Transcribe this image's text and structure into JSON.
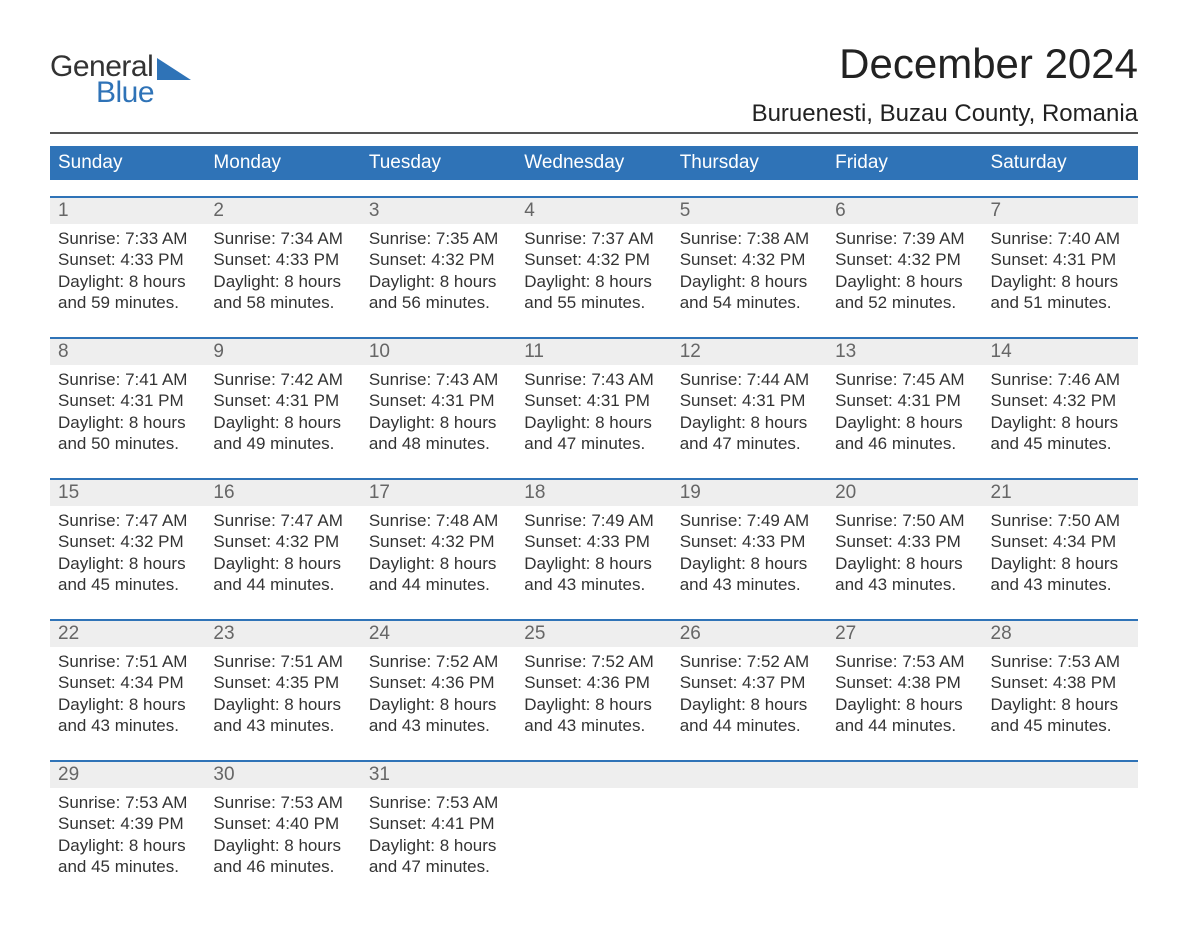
{
  "brand": {
    "word1": "General",
    "word2": "Blue"
  },
  "title": "December 2024",
  "location": "Buruenesti, Buzau County, Romania",
  "colors": {
    "header_bg": "#2f73b7",
    "daynum_bg": "#eeeeee",
    "week_border": "#2f73b7",
    "text": "#333333",
    "daynum_text": "#666666"
  },
  "day_headers": [
    "Sunday",
    "Monday",
    "Tuesday",
    "Wednesday",
    "Thursday",
    "Friday",
    "Saturday"
  ],
  "weeks": [
    {
      "days": [
        {
          "num": "1",
          "sunrise": "Sunrise: 7:33 AM",
          "sunset": "Sunset: 4:33 PM",
          "dl1": "Daylight: 8 hours",
          "dl2": "and 59 minutes."
        },
        {
          "num": "2",
          "sunrise": "Sunrise: 7:34 AM",
          "sunset": "Sunset: 4:33 PM",
          "dl1": "Daylight: 8 hours",
          "dl2": "and 58 minutes."
        },
        {
          "num": "3",
          "sunrise": "Sunrise: 7:35 AM",
          "sunset": "Sunset: 4:32 PM",
          "dl1": "Daylight: 8 hours",
          "dl2": "and 56 minutes."
        },
        {
          "num": "4",
          "sunrise": "Sunrise: 7:37 AM",
          "sunset": "Sunset: 4:32 PM",
          "dl1": "Daylight: 8 hours",
          "dl2": "and 55 minutes."
        },
        {
          "num": "5",
          "sunrise": "Sunrise: 7:38 AM",
          "sunset": "Sunset: 4:32 PM",
          "dl1": "Daylight: 8 hours",
          "dl2": "and 54 minutes."
        },
        {
          "num": "6",
          "sunrise": "Sunrise: 7:39 AM",
          "sunset": "Sunset: 4:32 PM",
          "dl1": "Daylight: 8 hours",
          "dl2": "and 52 minutes."
        },
        {
          "num": "7",
          "sunrise": "Sunrise: 7:40 AM",
          "sunset": "Sunset: 4:31 PM",
          "dl1": "Daylight: 8 hours",
          "dl2": "and 51 minutes."
        }
      ]
    },
    {
      "days": [
        {
          "num": "8",
          "sunrise": "Sunrise: 7:41 AM",
          "sunset": "Sunset: 4:31 PM",
          "dl1": "Daylight: 8 hours",
          "dl2": "and 50 minutes."
        },
        {
          "num": "9",
          "sunrise": "Sunrise: 7:42 AM",
          "sunset": "Sunset: 4:31 PM",
          "dl1": "Daylight: 8 hours",
          "dl2": "and 49 minutes."
        },
        {
          "num": "10",
          "sunrise": "Sunrise: 7:43 AM",
          "sunset": "Sunset: 4:31 PM",
          "dl1": "Daylight: 8 hours",
          "dl2": "and 48 minutes."
        },
        {
          "num": "11",
          "sunrise": "Sunrise: 7:43 AM",
          "sunset": "Sunset: 4:31 PM",
          "dl1": "Daylight: 8 hours",
          "dl2": "and 47 minutes."
        },
        {
          "num": "12",
          "sunrise": "Sunrise: 7:44 AM",
          "sunset": "Sunset: 4:31 PM",
          "dl1": "Daylight: 8 hours",
          "dl2": "and 47 minutes."
        },
        {
          "num": "13",
          "sunrise": "Sunrise: 7:45 AM",
          "sunset": "Sunset: 4:31 PM",
          "dl1": "Daylight: 8 hours",
          "dl2": "and 46 minutes."
        },
        {
          "num": "14",
          "sunrise": "Sunrise: 7:46 AM",
          "sunset": "Sunset: 4:32 PM",
          "dl1": "Daylight: 8 hours",
          "dl2": "and 45 minutes."
        }
      ]
    },
    {
      "days": [
        {
          "num": "15",
          "sunrise": "Sunrise: 7:47 AM",
          "sunset": "Sunset: 4:32 PM",
          "dl1": "Daylight: 8 hours",
          "dl2": "and 45 minutes."
        },
        {
          "num": "16",
          "sunrise": "Sunrise: 7:47 AM",
          "sunset": "Sunset: 4:32 PM",
          "dl1": "Daylight: 8 hours",
          "dl2": "and 44 minutes."
        },
        {
          "num": "17",
          "sunrise": "Sunrise: 7:48 AM",
          "sunset": "Sunset: 4:32 PM",
          "dl1": "Daylight: 8 hours",
          "dl2": "and 44 minutes."
        },
        {
          "num": "18",
          "sunrise": "Sunrise: 7:49 AM",
          "sunset": "Sunset: 4:33 PM",
          "dl1": "Daylight: 8 hours",
          "dl2": "and 43 minutes."
        },
        {
          "num": "19",
          "sunrise": "Sunrise: 7:49 AM",
          "sunset": "Sunset: 4:33 PM",
          "dl1": "Daylight: 8 hours",
          "dl2": "and 43 minutes."
        },
        {
          "num": "20",
          "sunrise": "Sunrise: 7:50 AM",
          "sunset": "Sunset: 4:33 PM",
          "dl1": "Daylight: 8 hours",
          "dl2": "and 43 minutes."
        },
        {
          "num": "21",
          "sunrise": "Sunrise: 7:50 AM",
          "sunset": "Sunset: 4:34 PM",
          "dl1": "Daylight: 8 hours",
          "dl2": "and 43 minutes."
        }
      ]
    },
    {
      "days": [
        {
          "num": "22",
          "sunrise": "Sunrise: 7:51 AM",
          "sunset": "Sunset: 4:34 PM",
          "dl1": "Daylight: 8 hours",
          "dl2": "and 43 minutes."
        },
        {
          "num": "23",
          "sunrise": "Sunrise: 7:51 AM",
          "sunset": "Sunset: 4:35 PM",
          "dl1": "Daylight: 8 hours",
          "dl2": "and 43 minutes."
        },
        {
          "num": "24",
          "sunrise": "Sunrise: 7:52 AM",
          "sunset": "Sunset: 4:36 PM",
          "dl1": "Daylight: 8 hours",
          "dl2": "and 43 minutes."
        },
        {
          "num": "25",
          "sunrise": "Sunrise: 7:52 AM",
          "sunset": "Sunset: 4:36 PM",
          "dl1": "Daylight: 8 hours",
          "dl2": "and 43 minutes."
        },
        {
          "num": "26",
          "sunrise": "Sunrise: 7:52 AM",
          "sunset": "Sunset: 4:37 PM",
          "dl1": "Daylight: 8 hours",
          "dl2": "and 44 minutes."
        },
        {
          "num": "27",
          "sunrise": "Sunrise: 7:53 AM",
          "sunset": "Sunset: 4:38 PM",
          "dl1": "Daylight: 8 hours",
          "dl2": "and 44 minutes."
        },
        {
          "num": "28",
          "sunrise": "Sunrise: 7:53 AM",
          "sunset": "Sunset: 4:38 PM",
          "dl1": "Daylight: 8 hours",
          "dl2": "and 45 minutes."
        }
      ]
    },
    {
      "days": [
        {
          "num": "29",
          "sunrise": "Sunrise: 7:53 AM",
          "sunset": "Sunset: 4:39 PM",
          "dl1": "Daylight: 8 hours",
          "dl2": "and 45 minutes."
        },
        {
          "num": "30",
          "sunrise": "Sunrise: 7:53 AM",
          "sunset": "Sunset: 4:40 PM",
          "dl1": "Daylight: 8 hours",
          "dl2": "and 46 minutes."
        },
        {
          "num": "31",
          "sunrise": "Sunrise: 7:53 AM",
          "sunset": "Sunset: 4:41 PM",
          "dl1": "Daylight: 8 hours",
          "dl2": "and 47 minutes."
        },
        {
          "empty": true
        },
        {
          "empty": true
        },
        {
          "empty": true
        },
        {
          "empty": true
        }
      ]
    }
  ]
}
